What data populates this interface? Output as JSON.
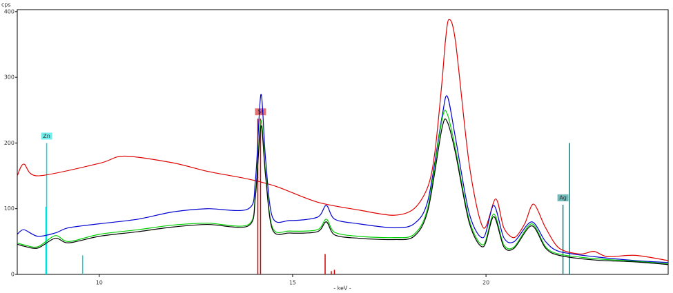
{
  "chart_data": {
    "type": "line",
    "y_label": "cps",
    "x_label": "- keV -",
    "xlim": [
      7.88,
      24.71
    ],
    "ylim": [
      0,
      403
    ],
    "xticks": [
      10,
      15,
      20
    ],
    "yticks": [
      0,
      100,
      200,
      300,
      400
    ],
    "series": [
      {
        "color": "#e00000",
        "x": [
          7.88,
          8.05,
          8.41,
          10,
          10.64,
          11.89,
          12.79,
          13.86,
          14.57,
          15.64,
          16.71,
          17.61,
          18.14,
          18.5,
          18.68,
          18.86,
          18.95,
          19.04,
          19.21,
          19.57,
          19.93,
          20.25,
          20.46,
          20.73,
          21.0,
          21.23,
          21.54,
          21.89,
          22.43,
          22.79,
          23.14,
          23.86,
          24.71
        ],
        "values": [
          150,
          168,
          150,
          169,
          180,
          170,
          157,
          145,
          134,
          110,
          98,
          90,
          100,
          134,
          187,
          292,
          355,
          388,
          355,
          166,
          71,
          115,
          71,
          56,
          77,
          107,
          71,
          40,
          31,
          35,
          27,
          29,
          21
        ]
      },
      {
        "color": "#0000d0",
        "x": [
          7.88,
          8.05,
          8.41,
          8.86,
          9.21,
          10,
          11,
          11.89,
          12.79,
          13.86,
          14.04,
          14.18,
          14.3,
          14.48,
          14.93,
          15.64,
          15.87,
          16.09,
          16.71,
          17.61,
          18.14,
          18.5,
          18.86,
          19.0,
          19.21,
          19.57,
          19.93,
          20.2,
          20.46,
          20.73,
          21.18,
          21.54,
          21.89,
          22.79,
          23.86,
          24.71
        ],
        "values": [
          61,
          68,
          58,
          63,
          71,
          77,
          84,
          95,
          100,
          100,
          145,
          274,
          176,
          87,
          82,
          87,
          105,
          84,
          77,
          71,
          77,
          113,
          239,
          271,
          208,
          92,
          56,
          105,
          56,
          50,
          80,
          50,
          35,
          27,
          21,
          18
        ]
      },
      {
        "color": "#00d000",
        "x": [
          7.88,
          8.05,
          8.41,
          8.86,
          9.21,
          10,
          11,
          11.89,
          12.79,
          13.86,
          14.04,
          14.18,
          14.3,
          14.48,
          14.93,
          15.64,
          15.87,
          16.09,
          16.71,
          17.61,
          18.14,
          18.5,
          18.86,
          19.0,
          19.21,
          19.57,
          19.93,
          20.2,
          20.46,
          20.73,
          21.18,
          21.54,
          21.89,
          22.79,
          23.86,
          24.71
        ],
        "values": [
          48,
          45,
          42,
          59,
          50,
          61,
          68,
          75,
          78,
          76,
          124,
          234,
          155,
          71,
          66,
          68,
          84,
          64,
          58,
          56,
          61,
          103,
          235,
          244,
          191,
          82,
          45,
          92,
          45,
          42,
          77,
          42,
          31,
          24,
          20,
          16
        ]
      },
      {
        "color": "#000000",
        "x": [
          7.88,
          8.05,
          8.41,
          8.86,
          9.21,
          10,
          11,
          11.89,
          12.79,
          13.86,
          14.04,
          14.18,
          14.3,
          14.48,
          14.93,
          15.64,
          15.87,
          16.09,
          16.71,
          17.61,
          18.14,
          18.5,
          18.86,
          19.0,
          19.21,
          19.57,
          19.93,
          20.2,
          20.46,
          20.73,
          21.18,
          21.54,
          21.89,
          22.79,
          23.86,
          24.71
        ],
        "values": [
          46,
          43,
          40,
          55,
          48,
          58,
          65,
          72,
          76,
          74,
          120,
          226,
          150,
          68,
          63,
          65,
          80,
          60,
          55,
          53,
          58,
          98,
          222,
          232,
          185,
          78,
          42,
          88,
          42,
          40,
          74,
          40,
          29,
          22,
          19,
          15
        ]
      }
    ],
    "markers": [
      {
        "label": "Zn",
        "color": "#00e0e0",
        "lines": [
          {
            "x": 8.64,
            "y": 200
          },
          {
            "x": 8.62,
            "y": 103
          },
          {
            "x": 9.57,
            "y": 29
          }
        ]
      },
      {
        "label": "Sr",
        "color": "#d00000",
        "lines": [
          {
            "x": 14.1,
            "y": 237
          },
          {
            "x": 14.17,
            "y": 237
          },
          {
            "x": 15.84,
            "y": 31
          },
          {
            "x": 16.0,
            "y": 5
          },
          {
            "x": 16.08,
            "y": 7
          }
        ]
      },
      {
        "label": "Ag",
        "color": "#008080",
        "lines": [
          {
            "x": 21.99,
            "y": 106
          },
          {
            "x": 22.16,
            "y": 200
          }
        ]
      }
    ]
  }
}
